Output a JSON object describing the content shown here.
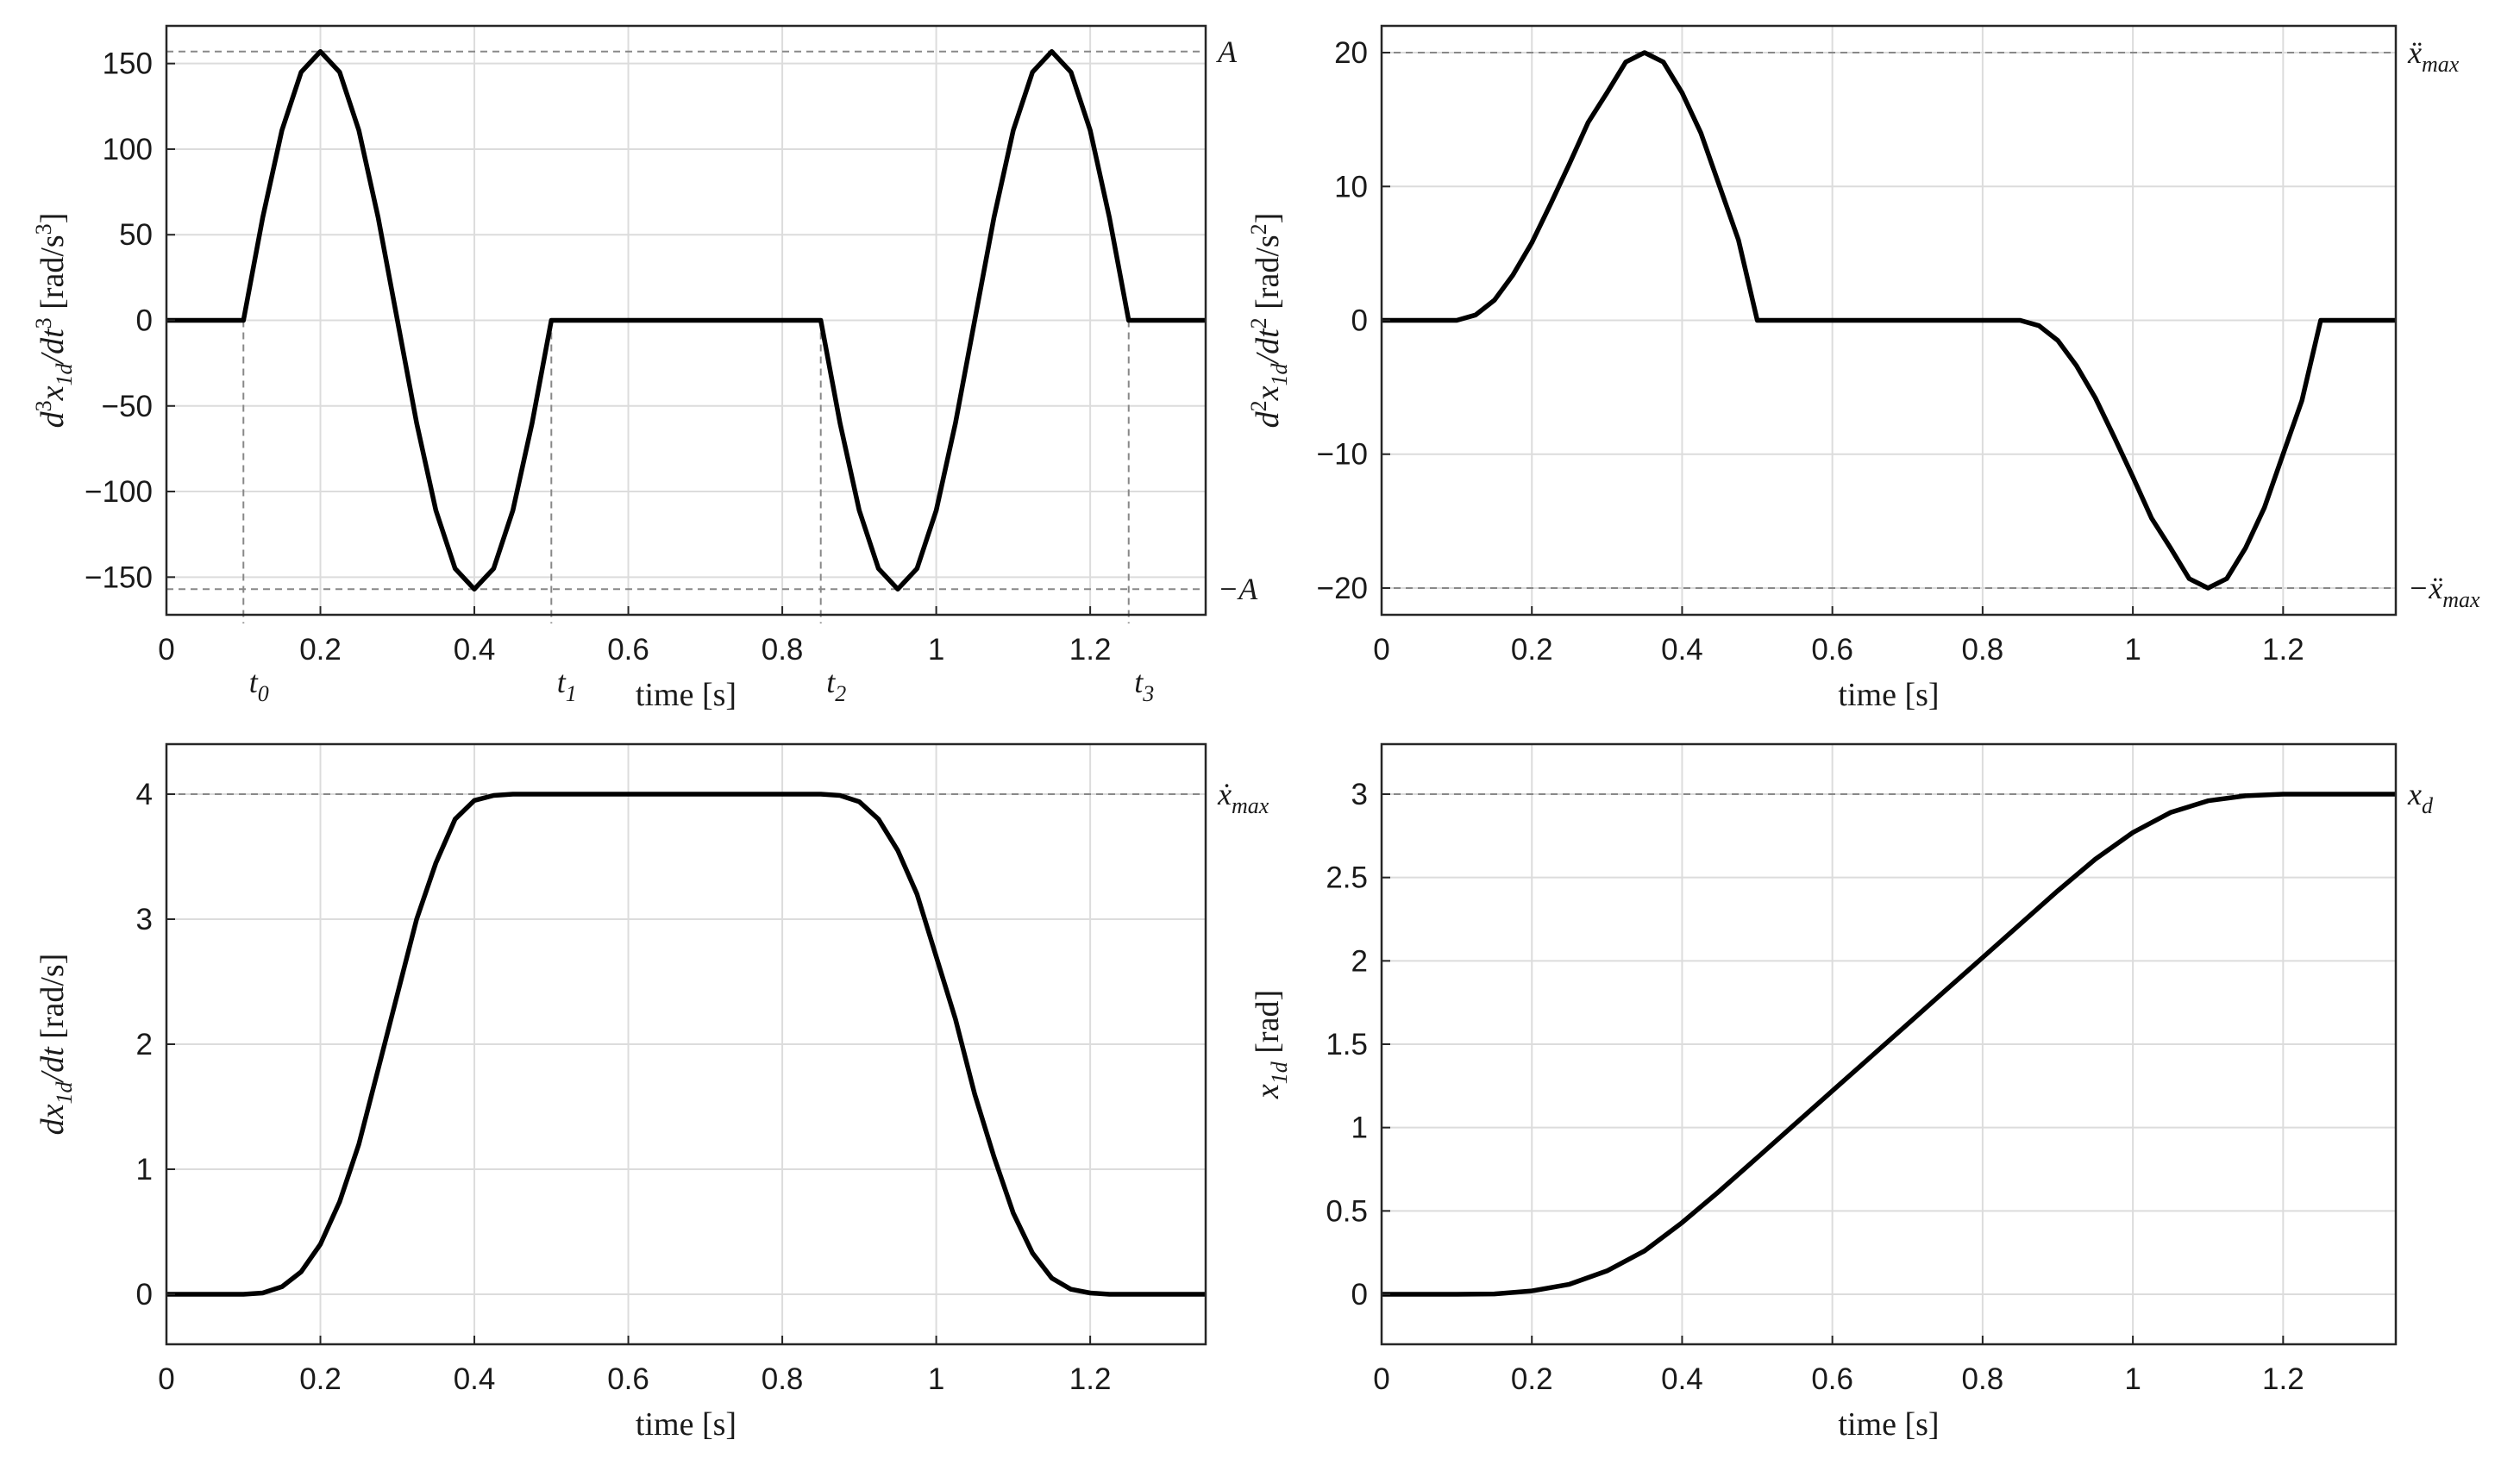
{
  "chart_data": [
    {
      "type": "line",
      "xlabel": "time [s]",
      "ylabel": {
        "main": "d",
        "sup1": "3",
        "main2": "x",
        "sub": "1d",
        "main3": "/dt",
        "sup2": "3",
        "unit": "[rad/s",
        "unit_sup": "3",
        "unit_end": "]"
      },
      "xlim": [
        0,
        1.35
      ],
      "ylim": [
        -172,
        172
      ],
      "xticks": [
        0,
        0.2,
        0.4,
        0.6,
        0.8,
        1,
        1.2
      ],
      "xtick_labels": [
        "0",
        "0.2",
        "0.4",
        "0.6",
        "0.8",
        "1",
        "1.2"
      ],
      "yticks": [
        -150,
        -100,
        -50,
        0,
        50,
        100,
        150
      ],
      "ytick_labels": [
        "−150",
        "−100",
        "−50",
        "0",
        "50",
        "100",
        "150"
      ],
      "grid": true,
      "hlines": [
        {
          "y": 157,
          "label": "A"
        },
        {
          "y": -157,
          "label": "−A"
        }
      ],
      "vlines": [
        {
          "x": 0.1,
          "label": "t",
          "sub": "0"
        },
        {
          "x": 0.5,
          "label": "t",
          "sub": "1"
        },
        {
          "x": 0.85,
          "label": "t",
          "sub": "2"
        },
        {
          "x": 1.25,
          "label": "t",
          "sub": "3"
        }
      ],
      "series": [
        {
          "x": [
            0,
            0.1,
            0.125,
            0.15,
            0.175,
            0.2,
            0.225,
            0.25,
            0.275,
            0.3,
            0.325,
            0.35,
            0.375,
            0.4,
            0.425,
            0.45,
            0.475,
            0.5,
            0.85,
            0.875,
            0.9,
            0.925,
            0.95,
            0.975,
            1,
            1.025,
            1.05,
            1.075,
            1.1,
            1.125,
            1.15,
            1.175,
            1.2,
            1.225,
            1.25,
            1.35
          ],
          "y": [
            0,
            0,
            60,
            111,
            145,
            157,
            145,
            111,
            60,
            0,
            -60,
            -111,
            -145,
            -157,
            -145,
            -111,
            -60,
            0,
            0,
            -60,
            -111,
            -145,
            -157,
            -145,
            -111,
            -60,
            0,
            60,
            111,
            145,
            157,
            145,
            111,
            60,
            0,
            0
          ]
        }
      ]
    },
    {
      "type": "line",
      "xlabel": "time [s]",
      "ylabel": {
        "main": "d",
        "sup1": "2",
        "main2": "x",
        "sub": "1d",
        "main3": "/dt",
        "sup2": "2",
        "unit": "[rad/s",
        "unit_sup": "2",
        "unit_end": "]"
      },
      "xlim": [
        0,
        1.35
      ],
      "ylim": [
        -22,
        22
      ],
      "xticks": [
        0,
        0.2,
        0.4,
        0.6,
        0.8,
        1,
        1.2
      ],
      "xtick_labels": [
        "0",
        "0.2",
        "0.4",
        "0.6",
        "0.8",
        "1",
        "1.2"
      ],
      "yticks": [
        -20,
        -10,
        0,
        10,
        20
      ],
      "ytick_labels": [
        "−20",
        "−10",
        "0",
        "10",
        "20"
      ],
      "grid": true,
      "hlines": [
        {
          "y": 20,
          "label": "ẍ",
          "sub": "max"
        },
        {
          "y": -20,
          "label": "−ẍ",
          "sub": "max"
        }
      ],
      "series": [
        {
          "x": [
            0,
            0.1,
            0.125,
            0.15,
            0.175,
            0.2,
            0.225,
            0.25,
            0.275,
            0.3,
            0.325,
            0.35,
            0.375,
            0.4,
            0.425,
            0.45,
            0.475,
            0.5,
            0.85,
            0.875,
            0.9,
            0.925,
            0.95,
            0.975,
            1,
            1.025,
            1.05,
            1.075,
            1.1,
            1.125,
            1.15,
            1.175,
            1.2,
            1.225,
            1.25,
            1.35
          ],
          "y": [
            0,
            0,
            0.4,
            1.5,
            3.4,
            5.8,
            8.7,
            11.7,
            14.8,
            17.0,
            19.3,
            20.0,
            19.3,
            17.0,
            14.0,
            10.0,
            6.0,
            0,
            0,
            -0.4,
            -1.5,
            -3.4,
            -5.8,
            -8.7,
            -11.7,
            -14.8,
            -17.0,
            -19.3,
            -20.0,
            -19.3,
            -17.0,
            -14.0,
            -10.0,
            -6.0,
            0,
            0
          ]
        }
      ]
    },
    {
      "type": "line",
      "xlabel": "time [s]",
      "ylabel": {
        "main": "dx",
        "sub": "1d",
        "main3": "/dt",
        "unit": "[rad/s]"
      },
      "xlim": [
        0,
        1.35
      ],
      "ylim": [
        -0.4,
        4.4
      ],
      "xticks": [
        0,
        0.2,
        0.4,
        0.6,
        0.8,
        1,
        1.2
      ],
      "xtick_labels": [
        "0",
        "0.2",
        "0.4",
        "0.6",
        "0.8",
        "1",
        "1.2"
      ],
      "yticks": [
        0,
        1,
        2,
        3,
        4
      ],
      "ytick_labels": [
        "0",
        "1",
        "2",
        "3",
        "4"
      ],
      "grid": true,
      "hlines": [
        {
          "y": 4,
          "label": "ẋ",
          "sub": "max"
        }
      ],
      "series": [
        {
          "x": [
            0,
            0.1,
            0.125,
            0.15,
            0.175,
            0.2,
            0.225,
            0.25,
            0.275,
            0.3,
            0.325,
            0.35,
            0.375,
            0.4,
            0.425,
            0.45,
            0.475,
            0.5,
            0.85,
            0.875,
            0.9,
            0.925,
            0.95,
            0.975,
            1,
            1.025,
            1.05,
            1.075,
            1.1,
            1.125,
            1.15,
            1.175,
            1.2,
            1.225,
            1.25,
            1.35
          ],
          "y": [
            0,
            0,
            0.01,
            0.06,
            0.18,
            0.4,
            0.74,
            1.2,
            1.8,
            2.4,
            3.0,
            3.45,
            3.8,
            3.95,
            3.99,
            4.0,
            4.0,
            4.0,
            4.0,
            3.99,
            3.94,
            3.8,
            3.55,
            3.2,
            2.7,
            2.2,
            1.6,
            1.1,
            0.65,
            0.33,
            0.13,
            0.04,
            0.01,
            0.0,
            0,
            0
          ]
        }
      ]
    },
    {
      "type": "line",
      "xlabel": "time [s]",
      "ylabel": {
        "main": "x",
        "sub": "1d",
        "unit": "[rad]"
      },
      "xlim": [
        0,
        1.35
      ],
      "ylim": [
        -0.3,
        3.3
      ],
      "xticks": [
        0,
        0.2,
        0.4,
        0.6,
        0.8,
        1,
        1.2
      ],
      "xtick_labels": [
        "0",
        "0.2",
        "0.4",
        "0.6",
        "0.8",
        "1",
        "1.2"
      ],
      "yticks": [
        0,
        0.5,
        1,
        1.5,
        2,
        2.5,
        3
      ],
      "ytick_labels": [
        "0",
        "0.5",
        "1",
        "1.5",
        "2",
        "2.5",
        "3"
      ],
      "grid": true,
      "hlines": [
        {
          "y": 3,
          "label": "x",
          "sub": "d"
        }
      ],
      "series": [
        {
          "x": [
            0,
            0.1,
            0.15,
            0.2,
            0.25,
            0.3,
            0.35,
            0.4,
            0.45,
            0.5,
            0.55,
            0.6,
            0.65,
            0.7,
            0.75,
            0.8,
            0.85,
            0.9,
            0.95,
            1,
            1.05,
            1.1,
            1.15,
            1.2,
            1.25,
            1.35
          ],
          "y": [
            0,
            0,
            0.002,
            0.02,
            0.06,
            0.14,
            0.26,
            0.43,
            0.62,
            0.82,
            1.02,
            1.22,
            1.42,
            1.62,
            1.82,
            2.02,
            2.22,
            2.42,
            2.61,
            2.77,
            2.89,
            2.96,
            2.99,
            3.0,
            3.0,
            3.0
          ]
        }
      ]
    }
  ]
}
